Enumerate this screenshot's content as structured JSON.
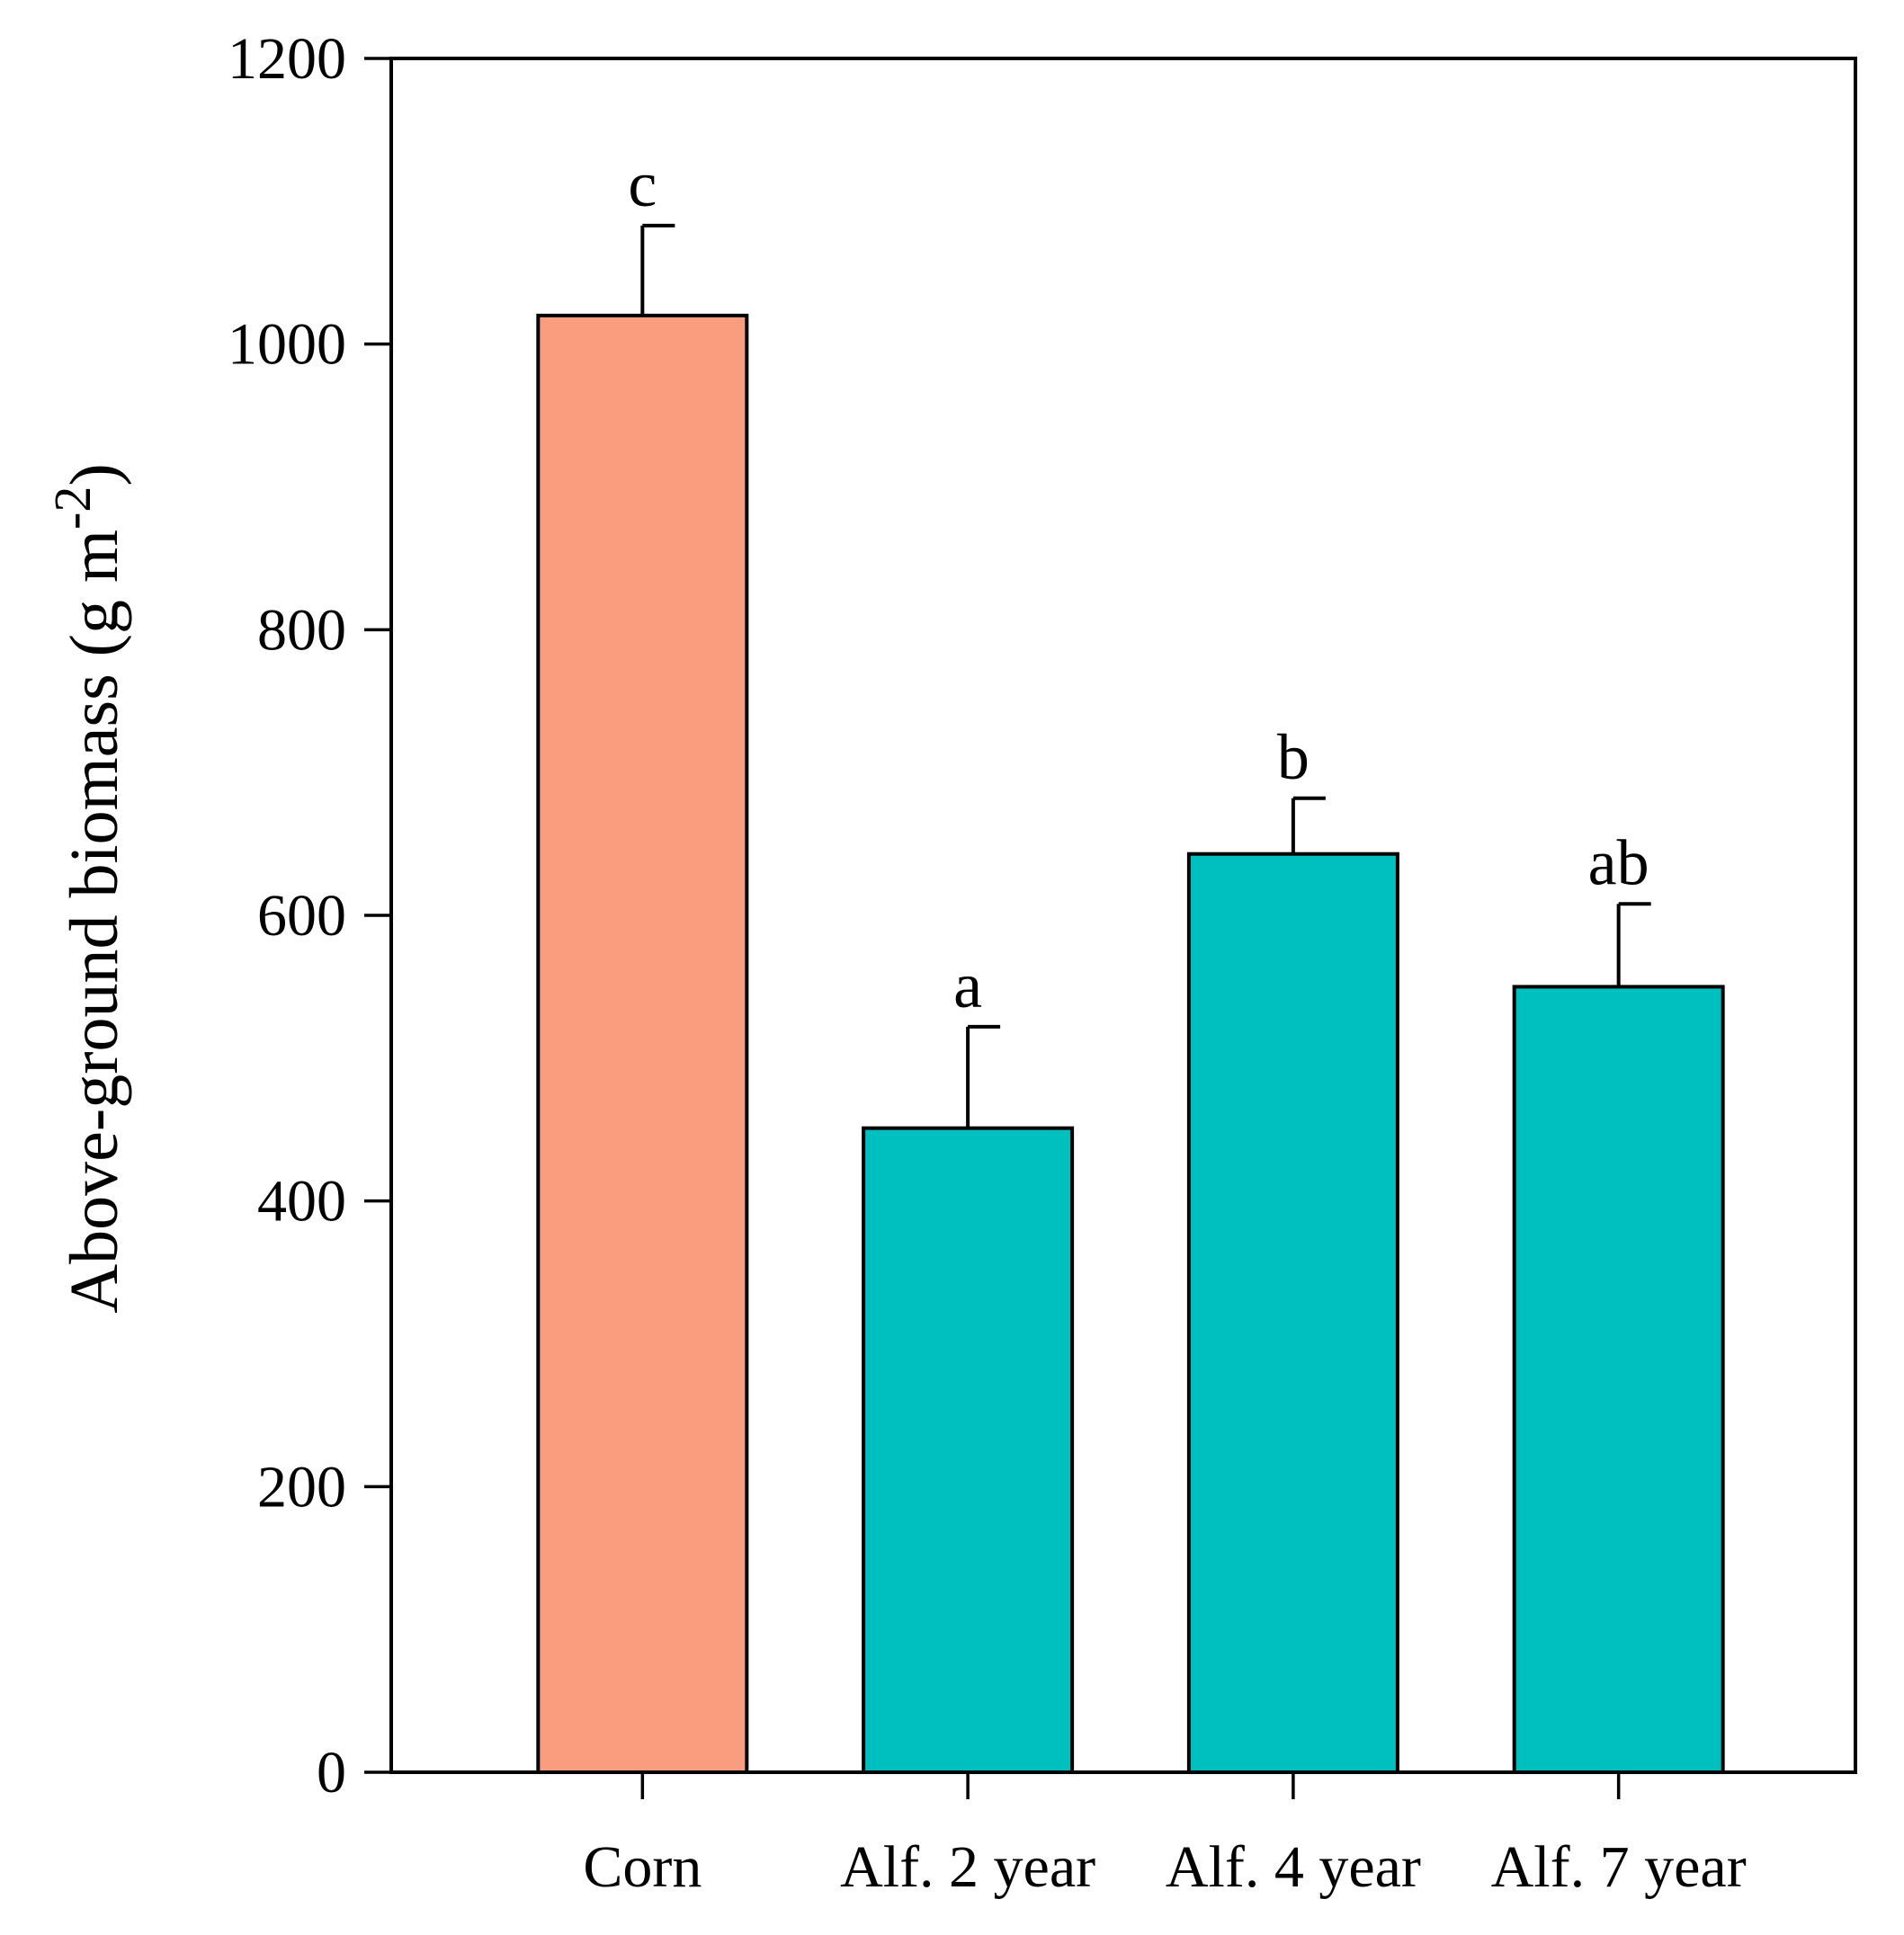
{
  "chart_data": {
    "type": "bar",
    "title": "",
    "xlabel": "",
    "ylabel": "Above-ground biomass (g m",
    "ylabel_superscript": "-2",
    "ylabel_close": ")",
    "ylim": [
      0,
      1200
    ],
    "yticks": [
      0,
      200,
      400,
      600,
      800,
      1000,
      1200
    ],
    "grid": false,
    "categories": [
      "Corn",
      "Alf. 2 year",
      "Alf. 4 year",
      "Alf. 7 year"
    ],
    "values": [
      1020,
      451,
      643,
      550
    ],
    "errors": [
      63,
      71,
      39,
      58
    ],
    "significance": [
      "c",
      "a",
      "b",
      "ab"
    ],
    "colors": [
      "#FA9D7E",
      "#00BFBF",
      "#00BFBF",
      "#00BFBF"
    ]
  }
}
